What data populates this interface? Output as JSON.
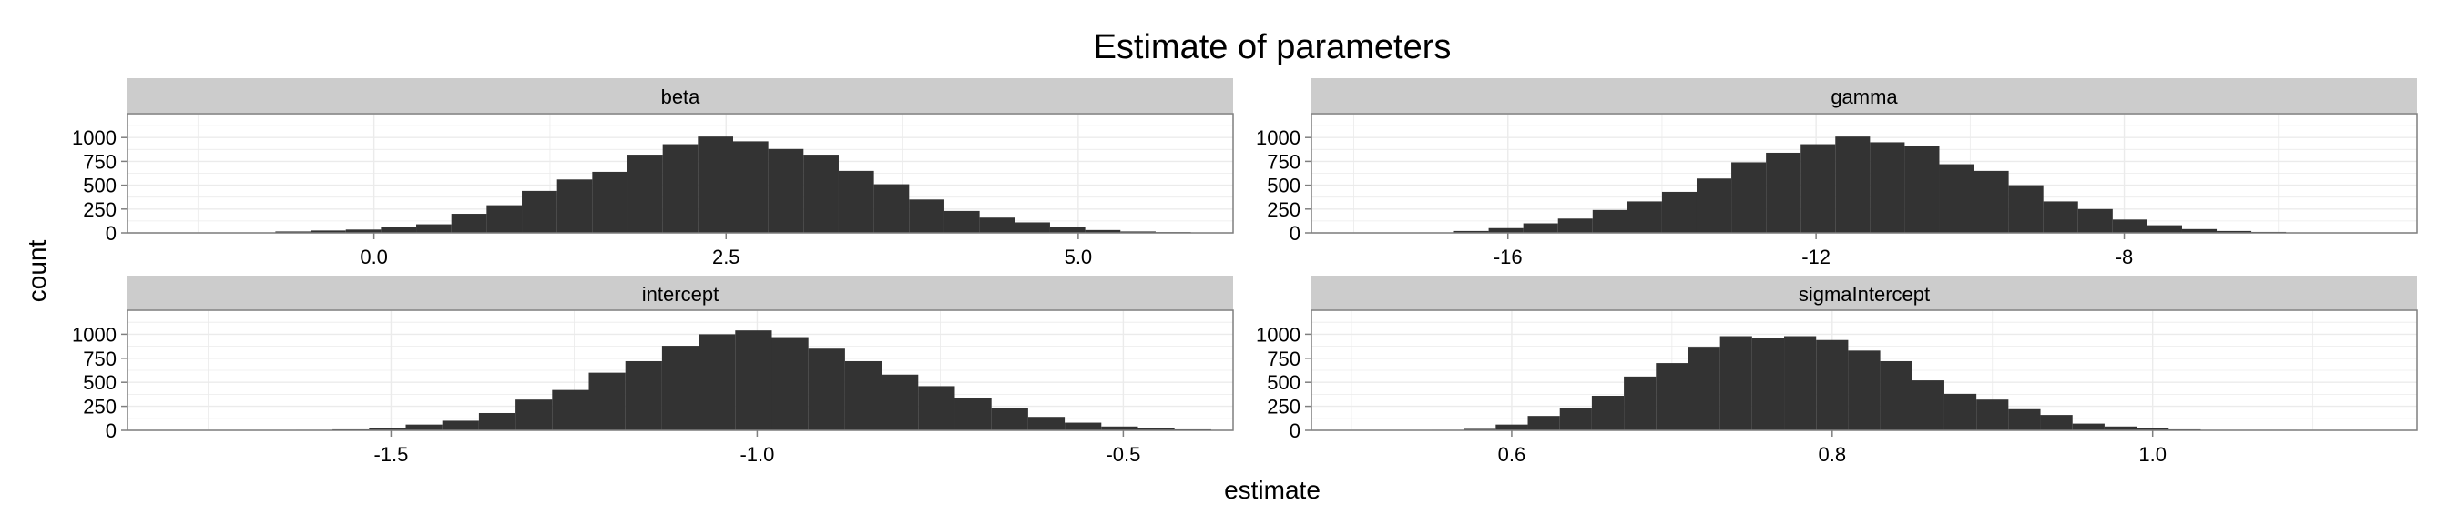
{
  "chart_data": {
    "type": "bar",
    "title": "Estimate of parameters",
    "xlabel": "estimate",
    "ylabel": "count",
    "ylim": [
      0,
      1250
    ],
    "y_ticks": [
      0,
      250,
      500,
      750,
      1000
    ],
    "grid": true,
    "colors": {
      "bar": "#333333",
      "strip": "#cccccc",
      "grid": "#ebebeb",
      "border": "#7f7f7f"
    },
    "facets": [
      {
        "name": "beta",
        "xlim": [
          -1.75,
          6.1
        ],
        "x_ticks": [
          0.0,
          2.5,
          5.0
        ],
        "x_tick_labels": [
          "0.0",
          "2.5",
          "5.0"
        ],
        "bins": {
          "start": -0.95,
          "width": 0.25,
          "values": [
            5,
            15,
            25,
            35,
            60,
            90,
            200,
            290,
            440,
            560,
            640,
            820,
            930,
            1010,
            960,
            880,
            820,
            650,
            510,
            350,
            230,
            160,
            110,
            60,
            30,
            15,
            8
          ]
        }
      },
      {
        "name": "gamma",
        "xlim": [
          -18.55,
          -4.2
        ],
        "x_ticks": [
          -16,
          -12,
          -8
        ],
        "x_tick_labels": [
          "-16",
          "-12",
          "-8"
        ],
        "bins": {
          "start": -17.15,
          "width": 0.45,
          "values": [
            5,
            20,
            50,
            100,
            150,
            240,
            330,
            430,
            570,
            740,
            840,
            930,
            1010,
            950,
            910,
            720,
            650,
            500,
            330,
            250,
            140,
            80,
            40,
            20,
            10
          ]
        }
      },
      {
        "name": "intercept",
        "xlim": [
          -1.86,
          -0.35
        ],
        "x_ticks": [
          -1.5,
          -1.0,
          -0.5
        ],
        "x_tick_labels": [
          "-1.5",
          "-1.0",
          "-0.5"
        ],
        "bins": {
          "start": -1.63,
          "width": 0.05,
          "values": [
            5,
            10,
            25,
            60,
            100,
            180,
            320,
            420,
            600,
            720,
            880,
            1000,
            1040,
            970,
            850,
            720,
            580,
            460,
            340,
            230,
            140,
            80,
            40,
            20,
            10
          ]
        }
      },
      {
        "name": "sigmaIntercept",
        "xlim": [
          0.475,
          1.165
        ],
        "x_ticks": [
          0.6,
          0.8,
          1.0
        ],
        "x_tick_labels": [
          "0.6",
          "0.8",
          "1.0"
        ],
        "bins": {
          "start": 0.55,
          "width": 0.02,
          "values": [
            5,
            15,
            60,
            150,
            230,
            360,
            560,
            700,
            870,
            980,
            960,
            980,
            940,
            830,
            720,
            520,
            380,
            320,
            220,
            160,
            70,
            40,
            20,
            10,
            5,
            5,
            5
          ]
        }
      }
    ]
  }
}
